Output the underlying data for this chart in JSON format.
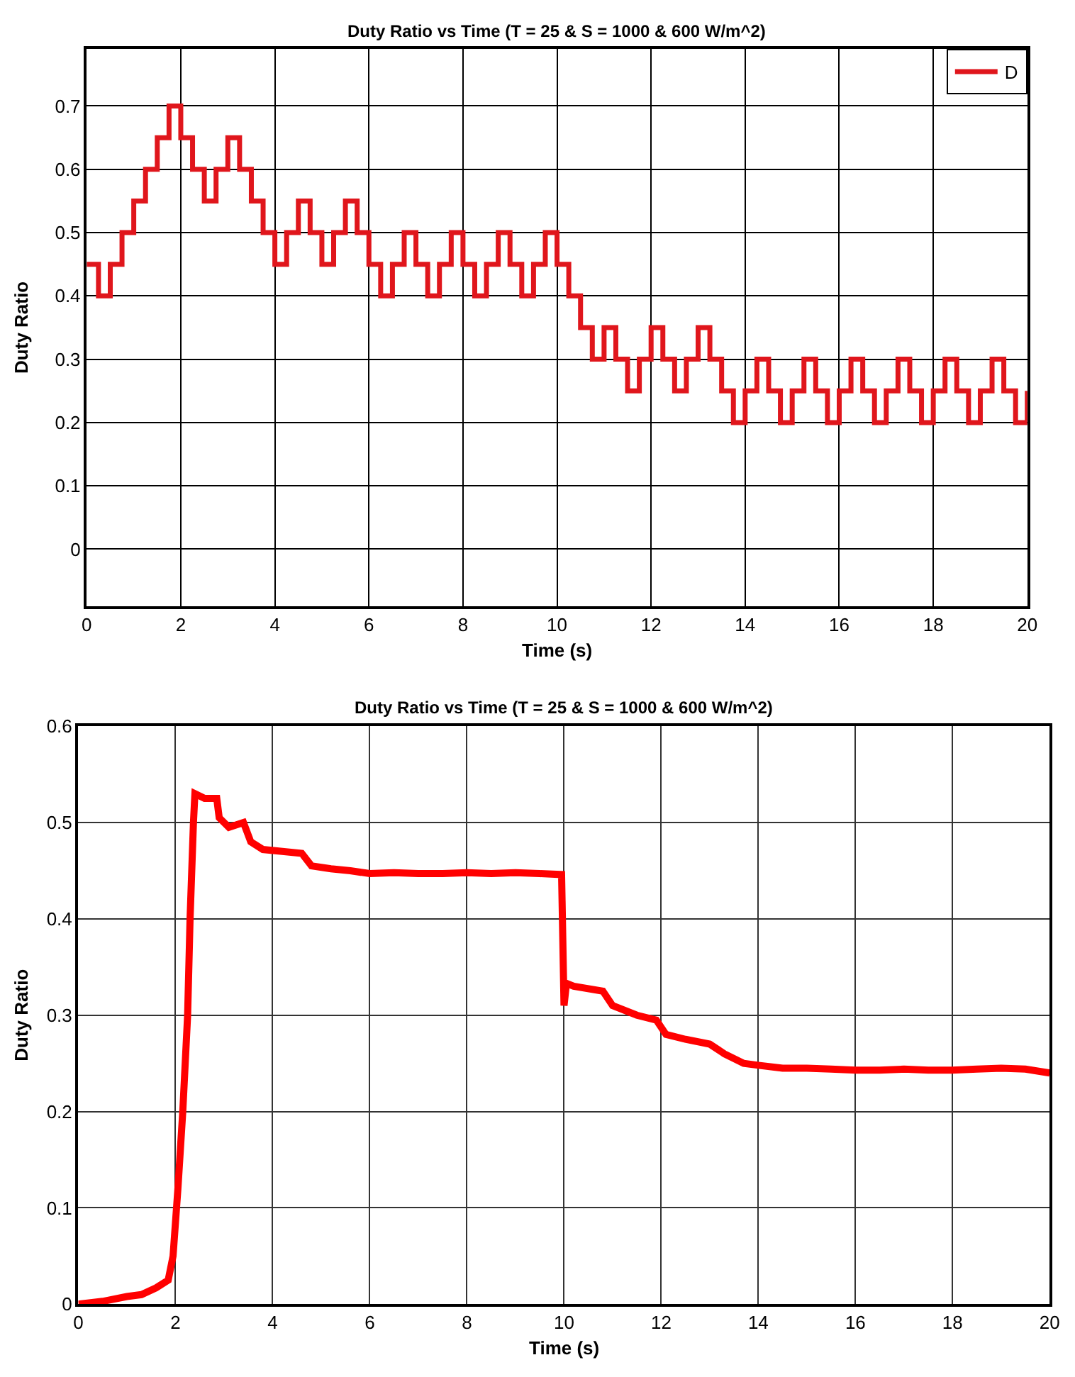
{
  "chart_data": [
    {
      "type": "step",
      "title": "Duty Ratio vs Time (T = 25 & S = 1000 & 600 W/m^2)",
      "xlabel": "Time (s)",
      "ylabel": "Duty Ratio",
      "xlim": [
        0,
        20
      ],
      "ylim": [
        -0.09,
        0.79
      ],
      "xticks": [
        0,
        2,
        4,
        6,
        8,
        10,
        12,
        14,
        16,
        18,
        20
      ],
      "yticks": [
        0,
        0.1,
        0.2,
        0.3,
        0.4,
        0.5,
        0.6,
        0.7
      ],
      "grid": true,
      "legend": "top right",
      "x": [
        0,
        0.25,
        0.5,
        0.75,
        1,
        1.25,
        1.5,
        1.75,
        2,
        2.25,
        2.5,
        2.75,
        3,
        3.25,
        3.5,
        3.75,
        4,
        4.25,
        4.5,
        4.75,
        5,
        5.25,
        5.5,
        5.75,
        6,
        6.25,
        6.5,
        6.75,
        7,
        7.25,
        7.5,
        7.75,
        8,
        8.25,
        8.5,
        8.75,
        9,
        9.25,
        9.5,
        9.75,
        10,
        10.25,
        10.5,
        10.75,
        11,
        11.25,
        11.5,
        11.75,
        12,
        12.25,
        12.5,
        12.75,
        13,
        13.25,
        13.5,
        13.75,
        14,
        14.25,
        14.5,
        14.75,
        15,
        15.25,
        15.5,
        15.75,
        16,
        16.25,
        16.5,
        16.75,
        17,
        17.25,
        17.5,
        17.75,
        18,
        18.25,
        18.5,
        18.75,
        19,
        19.25,
        19.5,
        19.75,
        20
      ],
      "series": [
        {
          "name": "D",
          "color": "#e0161c",
          "values": [
            0.45,
            0.4,
            0.45,
            0.5,
            0.55,
            0.6,
            0.65,
            0.7,
            0.65,
            0.6,
            0.55,
            0.6,
            0.65,
            0.6,
            0.55,
            0.5,
            0.45,
            0.5,
            0.55,
            0.5,
            0.45,
            0.5,
            0.55,
            0.5,
            0.45,
            0.4,
            0.45,
            0.5,
            0.45,
            0.4,
            0.45,
            0.5,
            0.45,
            0.4,
            0.45,
            0.5,
            0.45,
            0.4,
            0.45,
            0.5,
            0.45,
            0.4,
            0.35,
            0.3,
            0.35,
            0.3,
            0.25,
            0.3,
            0.35,
            0.3,
            0.25,
            0.3,
            0.35,
            0.3,
            0.25,
            0.2,
            0.25,
            0.3,
            0.25,
            0.2,
            0.25,
            0.3,
            0.25,
            0.2,
            0.25,
            0.3,
            0.25,
            0.2,
            0.25,
            0.3,
            0.25,
            0.2,
            0.25,
            0.3,
            0.25,
            0.2,
            0.25,
            0.3,
            0.25,
            0.2,
            0.25
          ]
        }
      ]
    },
    {
      "type": "line",
      "title": "Duty Ratio vs Time (T = 25 & S = 1000 & 600 W/m^2)",
      "xlabel": "Time (s)",
      "ylabel": "Duty Ratio",
      "xlim": [
        0,
        20
      ],
      "ylim": [
        0,
        0.6
      ],
      "xticks": [
        0,
        2,
        4,
        6,
        8,
        10,
        12,
        14,
        16,
        18,
        20
      ],
      "yticks": [
        0,
        0.1,
        0.2,
        0.3,
        0.4,
        0.5,
        0.6
      ],
      "grid": true,
      "x": [
        0,
        0.5,
        1,
        1.3,
        1.6,
        1.85,
        1.95,
        2.05,
        2.15,
        2.25,
        2.3,
        2.37,
        2.4,
        2.6,
        2.85,
        2.9,
        3.1,
        3.4,
        3.55,
        3.8,
        4.2,
        4.6,
        4.8,
        5.2,
        5.6,
        6,
        6.5,
        7,
        7.5,
        8,
        8.5,
        9,
        9.5,
        9.95,
        10,
        10.05,
        10.2,
        10.8,
        11,
        11.5,
        11.9,
        12.1,
        12.5,
        13,
        13.3,
        13.7,
        14,
        14.5,
        15,
        15.5,
        16,
        16.5,
        17,
        17.5,
        18,
        18.5,
        19,
        19.5,
        20
      ],
      "series": [
        {
          "color": "#ff0000",
          "values": [
            0,
            0.003,
            0.008,
            0.01,
            0.017,
            0.025,
            0.05,
            0.12,
            0.2,
            0.3,
            0.4,
            0.5,
            0.53,
            0.525,
            0.525,
            0.505,
            0.495,
            0.5,
            0.48,
            0.472,
            0.47,
            0.468,
            0.455,
            0.452,
            0.45,
            0.447,
            0.448,
            0.447,
            0.447,
            0.448,
            0.447,
            0.448,
            0.447,
            0.446,
            0.31,
            0.333,
            0.33,
            0.325,
            0.31,
            0.3,
            0.295,
            0.28,
            0.275,
            0.27,
            0.26,
            0.25,
            0.248,
            0.245,
            0.245,
            0.244,
            0.243,
            0.243,
            0.244,
            0.243,
            0.243,
            0.244,
            0.245,
            0.244,
            0.24
          ]
        }
      ]
    }
  ]
}
